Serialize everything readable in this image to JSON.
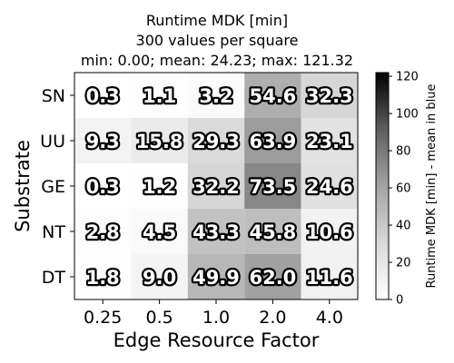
{
  "chart_data": {
    "type": "heatmap",
    "title_lines": [
      "Runtime MDK [min]",
      "300 values per square",
      "min: 0.00; mean: 24.23; max: 121.32"
    ],
    "xlabel": "Edge Resource Factor",
    "ylabel": "Substrate",
    "x_categories": [
      "0.25",
      "0.5",
      "1.0",
      "2.0",
      "4.0"
    ],
    "y_categories": [
      "SN",
      "UU",
      "GE",
      "NT",
      "DT"
    ],
    "values": [
      [
        0.3,
        1.1,
        3.2,
        54.6,
        32.3
      ],
      [
        9.3,
        15.8,
        29.3,
        63.9,
        23.1
      ],
      [
        0.3,
        1.2,
        32.2,
        73.5,
        24.6
      ],
      [
        2.8,
        4.5,
        43.3,
        45.8,
        10.6
      ],
      [
        1.8,
        9.0,
        49.9,
        62.0,
        11.6
      ]
    ],
    "value_labels": [
      [
        "0.3",
        "1.1",
        "3.2",
        "54.6",
        "32.3"
      ],
      [
        "9.3",
        "15.8",
        "29.3",
        "63.9",
        "23.1"
      ],
      [
        "0.3",
        "1.2",
        "32.2",
        "73.5",
        "24.6"
      ],
      [
        "2.8",
        "4.5",
        "43.3",
        "45.8",
        "10.6"
      ],
      [
        "1.8",
        "9.0",
        "49.9",
        "62.0",
        "11.6"
      ]
    ],
    "colorbar": {
      "label": "Runtime MDK [min] - mean in blue",
      "range": [
        0,
        122
      ],
      "ticks": [
        "0",
        "20",
        "40",
        "60",
        "80",
        "100",
        "120"
      ],
      "tick_values": [
        0,
        20,
        40,
        60,
        80,
        100,
        120
      ],
      "colormap": "Greys"
    },
    "grid": false
  }
}
